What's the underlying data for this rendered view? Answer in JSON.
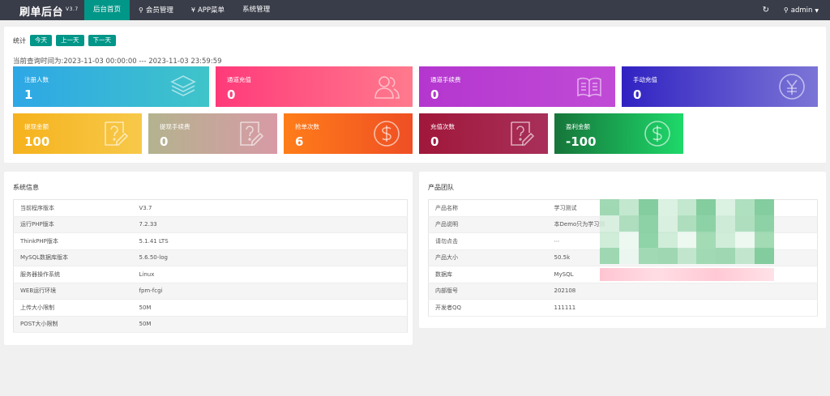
{
  "header": {
    "brand": "刷单后台",
    "version": "V3.7",
    "nav": [
      {
        "label": "后台首页",
        "icon": "",
        "active": true
      },
      {
        "label": "会员管理",
        "icon": "user-icon",
        "active": false
      },
      {
        "label": "APP菜单",
        "icon": "yen-icon",
        "active": false
      },
      {
        "label": "系统管理",
        "icon": "",
        "active": false
      }
    ],
    "user": "admin"
  },
  "stats": {
    "label": "统计",
    "buttons": [
      "今天",
      "上一天",
      "下一天"
    ],
    "query_time": "当前查询时间为:2023-11-03 00:00:00 --- 2023-11-03 23:59:59",
    "cards": [
      {
        "title": "注册人数",
        "value": "1",
        "icon": "layers-icon",
        "grad": [
          "#2ea7e6",
          "#3fc4c9"
        ]
      },
      {
        "title": "通道充值",
        "value": "0",
        "icon": "users-icon",
        "grad": [
          "#ff3a7a",
          "#ff7a8d"
        ]
      },
      {
        "title": "通道手续费",
        "value": "0",
        "icon": "book-icon",
        "grad": [
          "#b436cf",
          "#c04bd6"
        ]
      },
      {
        "title": "手动充值",
        "value": "0",
        "icon": "yen-circle-icon",
        "grad": [
          "#3022c2",
          "#7c75d6"
        ]
      },
      {
        "title": "提现金额",
        "value": "100",
        "icon": "question-doc-icon",
        "grad": [
          "#f6b21d",
          "#f7c94a"
        ]
      },
      {
        "title": "提现手续费",
        "value": "0",
        "icon": "question-doc-icon",
        "grad": [
          "#b3b38e",
          "#d89aa6"
        ]
      },
      {
        "title": "抢单次数",
        "value": "6",
        "icon": "dollar-circle-icon",
        "grad": [
          "#ff7d19",
          "#ef4f24"
        ]
      },
      {
        "title": "充值次数",
        "value": "0",
        "icon": "question-doc-icon",
        "grad": [
          "#a0173a",
          "#a8305a"
        ]
      },
      {
        "title": "盈利金额",
        "value": "-100",
        "icon": "dollar-circle-icon",
        "grad": [
          "#16753a",
          "#1ed96a"
        ]
      }
    ]
  },
  "system_info": {
    "title": "系统信息",
    "rows": [
      {
        "k": "当前程序版本",
        "v": "V3.7"
      },
      {
        "k": "运行PHP版本",
        "v": "7.2.33"
      },
      {
        "k": "ThinkPHP版本",
        "v": "5.1.41 LTS"
      },
      {
        "k": "MySQL数据库版本",
        "v": "5.6.50-log"
      },
      {
        "k": "服务器操作系统",
        "v": "Linux"
      },
      {
        "k": "WEB运行环境",
        "v": "fpm-fcgi"
      },
      {
        "k": "上传大小限制",
        "v": "50M"
      },
      {
        "k": "POST大小限制",
        "v": "50M"
      }
    ]
  },
  "product_team": {
    "title": "产品团队",
    "rows": [
      {
        "k": "产品名称",
        "v": "学习测试"
      },
      {
        "k": "产品说明",
        "v": "本Demo只为学习测"
      },
      {
        "k": "请勿点击",
        "v": "⋯"
      },
      {
        "k": "产品大小",
        "v": "50.5k"
      },
      {
        "k": "数据库",
        "v": "MySQL"
      },
      {
        "k": "内部版号",
        "v": "202108"
      },
      {
        "k": "开发者QQ",
        "v": "111111"
      }
    ]
  }
}
